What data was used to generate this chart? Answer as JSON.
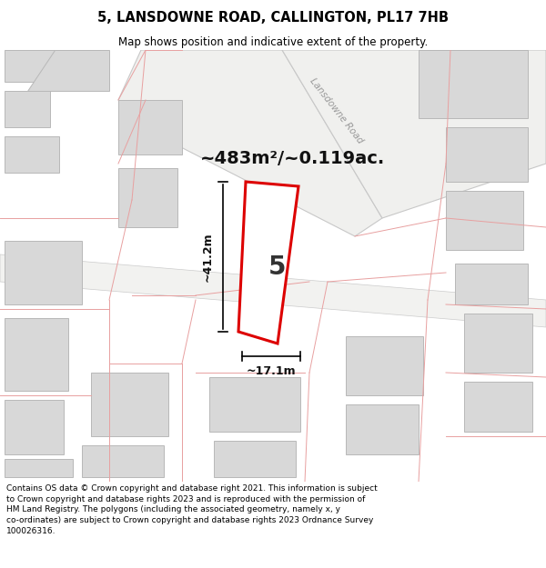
{
  "title": "5, LANSDOWNE ROAD, CALLINGTON, PL17 7HB",
  "subtitle": "Map shows position and indicative extent of the property.",
  "area_text": "~483m²/~0.119ac.",
  "dim_width": "~17.1m",
  "dim_height": "~41.2m",
  "plot_number": "5",
  "footer_text": "Contains OS data © Crown copyright and database right 2021. This information is subject to Crown copyright and database rights 2023 and is reproduced with the permission of HM Land Registry. The polygons (including the associated geometry, namely x, y co-ordinates) are subject to Crown copyright and database rights 2023 Ordnance Survey 100026316.",
  "bg_color": "#f5f5f5",
  "map_bg": "#f7f6f4",
  "road_label": "Lansdowne Road",
  "title_bg": "#ffffff",
  "footer_bg": "#ffffff",
  "red_color": "#dd0000",
  "pink_color": "#e8a0a0",
  "building_color": "#d8d8d8",
  "building_edge": "#b0b0b0",
  "road_fill": "#ffffff",
  "road_edge": "#cccccc"
}
